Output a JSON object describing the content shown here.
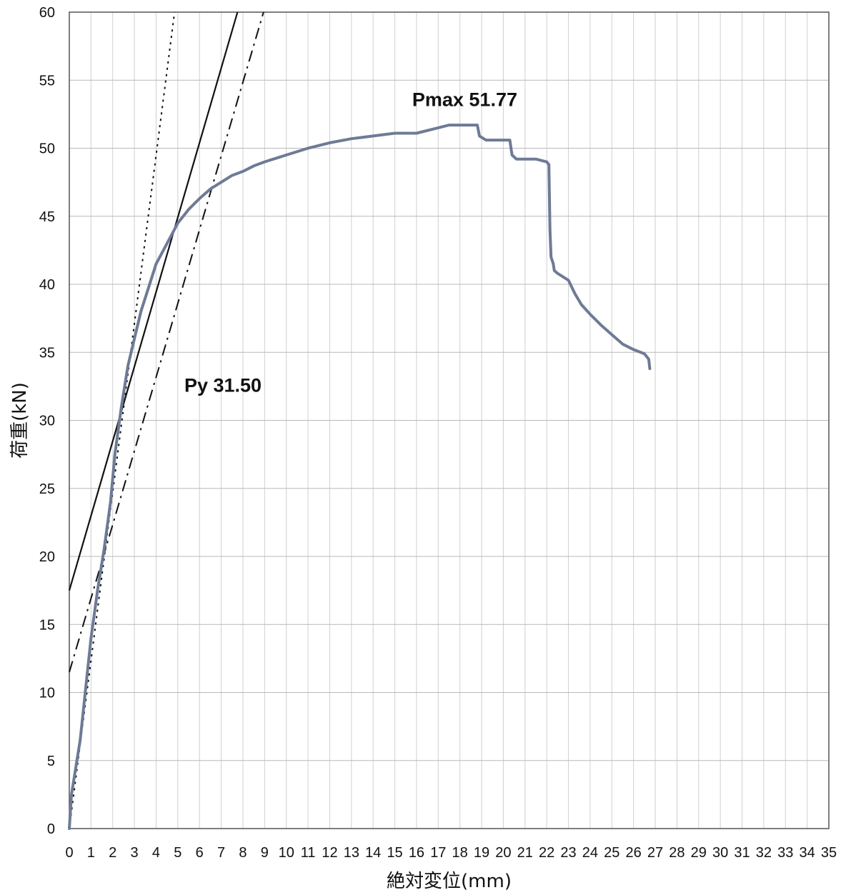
{
  "chart_data": {
    "type": "line",
    "xlabel": "絶対変位(mm)",
    "ylabel": "荷重(kN)",
    "xlim": [
      0,
      35
    ],
    "ylim": [
      0,
      60
    ],
    "x_ticks": [
      0,
      1,
      2,
      3,
      4,
      5,
      6,
      7,
      8,
      9,
      10,
      11,
      12,
      13,
      14,
      15,
      16,
      17,
      18,
      19,
      20,
      21,
      22,
      23,
      24,
      25,
      26,
      27,
      28,
      29,
      30,
      31,
      32,
      33,
      34,
      35
    ],
    "y_ticks": [
      0,
      5,
      10,
      15,
      20,
      25,
      30,
      35,
      40,
      45,
      50,
      55,
      60
    ],
    "grid": true,
    "series": [
      {
        "color": "#6f7a96",
        "x": [
          0,
          0.1,
          0.3,
          0.5,
          0.8,
          1.0,
          1.3,
          1.6,
          1.9,
          2.1,
          2.4,
          2.7,
          3.0,
          3.3,
          3.7,
          4.0,
          4.5,
          5.0,
          5.5,
          6.0,
          6.5,
          7.0,
          7.5,
          8.0,
          8.5,
          9.0,
          10.0,
          11.0,
          12.0,
          13.0,
          14.0,
          15.0,
          16.0,
          17.0,
          17.5,
          18.0,
          18.8,
          18.9,
          19.2,
          20.0,
          20.3,
          20.4,
          20.6,
          21.0,
          21.5,
          22.0,
          22.1,
          22.15,
          22.2,
          22.3,
          22.35,
          22.5,
          22.7,
          23.0,
          23.3,
          23.6,
          24.0,
          24.5,
          25.0,
          25.5,
          26.0,
          26.5,
          26.7,
          26.75
        ],
        "y": [
          0,
          2.5,
          4.5,
          6.5,
          11,
          14,
          17.5,
          20.5,
          24,
          27.5,
          31,
          34,
          36,
          38,
          40,
          41.5,
          43,
          44.5,
          45.5,
          46.3,
          47,
          47.5,
          48,
          48.3,
          48.7,
          49,
          49.5,
          50,
          50.4,
          50.7,
          50.9,
          51.1,
          51.1,
          51.5,
          51.7,
          51.7,
          51.7,
          50.9,
          50.6,
          50.6,
          50.6,
          49.5,
          49.2,
          49.2,
          49.2,
          49.0,
          48.8,
          44,
          42,
          41.5,
          41,
          40.8,
          40.6,
          40.3,
          39.3,
          38.5,
          37.8,
          37,
          36.3,
          35.6,
          35.2,
          34.9,
          34.5,
          33.8
        ]
      }
    ],
    "reference_lines": [
      {
        "style": "solid",
        "x": [
          0,
          7.75
        ],
        "y": [
          17.5,
          60
        ]
      },
      {
        "style": "dashed",
        "x": [
          0,
          8.95
        ],
        "y": [
          11.5,
          60
        ]
      },
      {
        "style": "dotted",
        "x": [
          0,
          4.85
        ],
        "y": [
          0,
          60
        ]
      }
    ],
    "annotations": [
      {
        "text": "Pmax 51.77",
        "x": 15.8,
        "y": 53.1
      },
      {
        "text": "Py 31.50",
        "x": 5.3,
        "y": 32.1
      }
    ]
  }
}
